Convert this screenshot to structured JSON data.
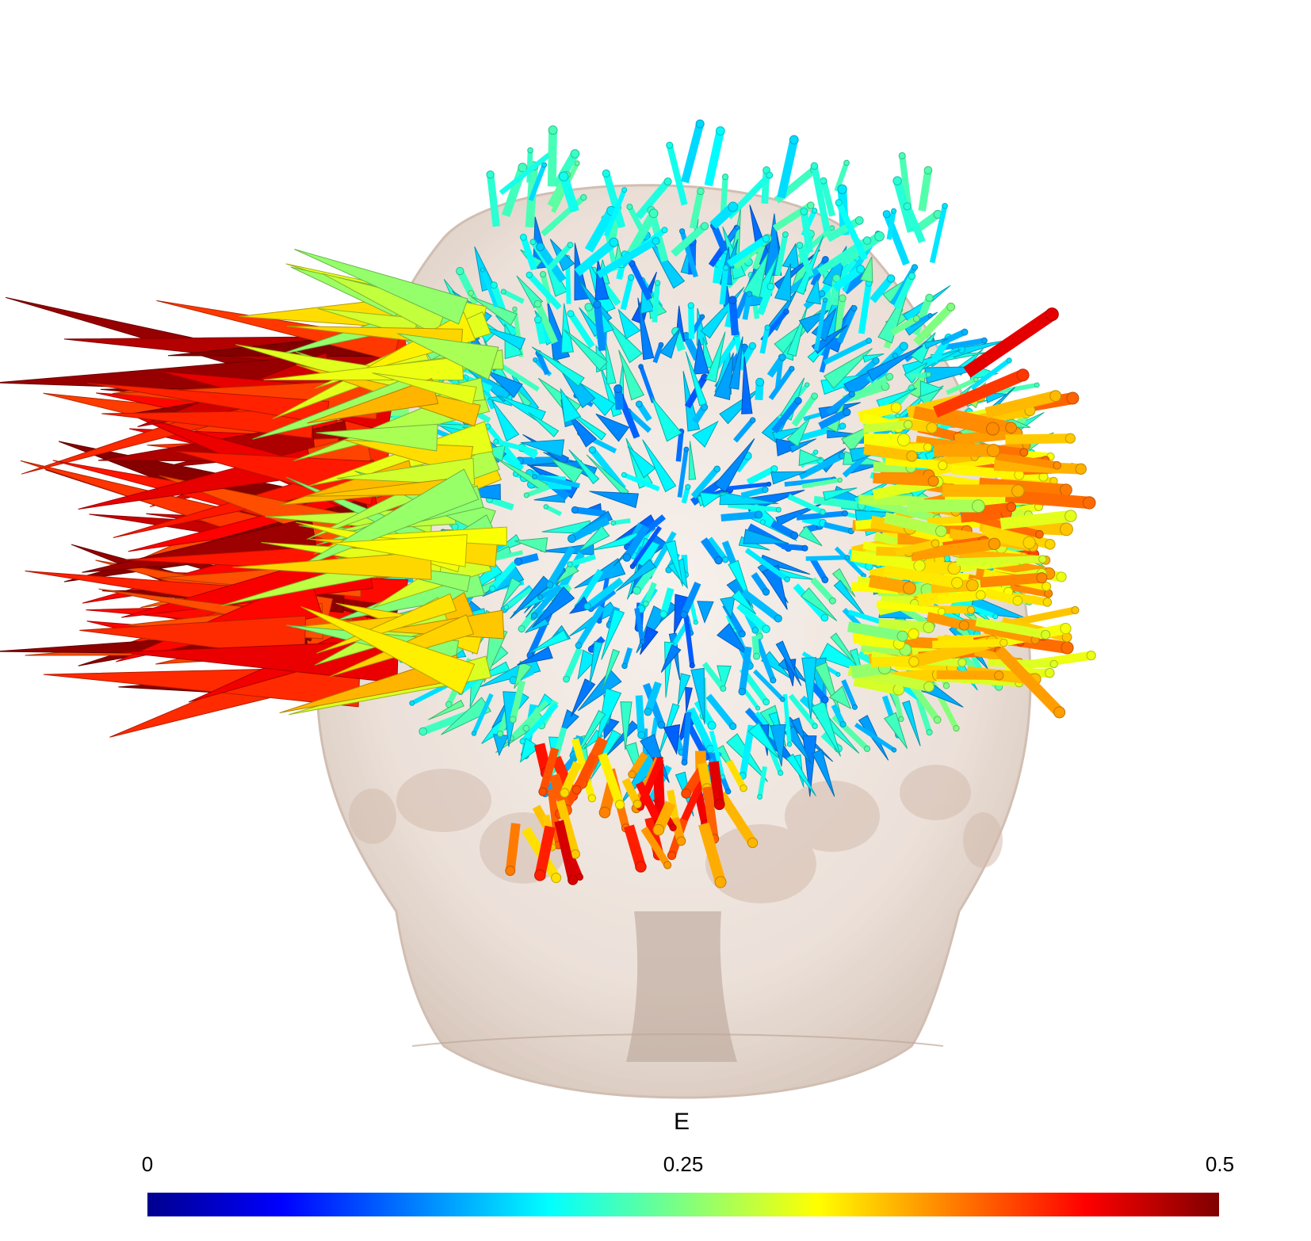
{
  "colorbar": {
    "title": "E",
    "min_label": "0",
    "mid_label": "0.25",
    "max_label": "0.5",
    "min": 0,
    "max": 0.5,
    "colormap": "jet",
    "stops": [
      "#00008f",
      "#0000ff",
      "#007fff",
      "#00ffff",
      "#7fff7f",
      "#ffff00",
      "#ff7f00",
      "#ff0000",
      "#7f0000"
    ]
  },
  "scene": {
    "head_color": "#e8dcd4",
    "skull_color": "#d8c2b4"
  }
}
